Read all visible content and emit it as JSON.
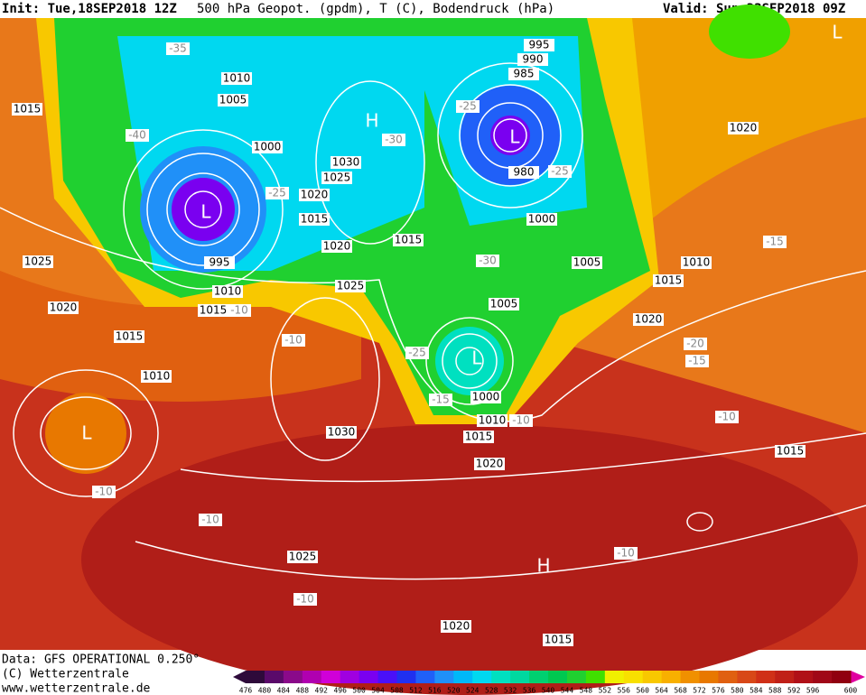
{
  "header": {
    "init": "Init: Tue,18SEP2018 12Z",
    "title": "500 hPa Geopot. (gpdm), T (C), Bodendruck (hPa)",
    "valid": "Valid: Sun,23SEP2018 09Z"
  },
  "map": {
    "pressure_centers": [
      "L",
      "H",
      "L",
      "L",
      "L",
      "H",
      "L"
    ],
    "isobar_labels": [
      "1015",
      "1025",
      "1020",
      "1015",
      "1010",
      "1010",
      "1005",
      "1000",
      "995",
      "1030",
      "1025",
      "1020",
      "1015",
      "1020",
      "1015",
      "1025",
      "995",
      "990",
      "985",
      "980",
      "1000",
      "1005",
      "1005",
      "1000",
      "1010",
      "1015",
      "1020",
      "1030",
      "1025",
      "1020",
      "1015",
      "1020",
      "1010",
      "1015",
      "1020",
      "1010",
      "1015",
      "1015"
    ],
    "temperature_labels": [
      "-35",
      "-40",
      "-25",
      "-30",
      "-25",
      "-25",
      "-30",
      "-25",
      "-15",
      "-10",
      "-10",
      "-10",
      "-10",
      "-10",
      "-15",
      "-20",
      "-15",
      "-10",
      "-10",
      "-10"
    ]
  },
  "footer": {
    "data": "Data: GFS OPERATIONAL 0.250°",
    "copyright": "(C) Wetterzentrale",
    "url": "www.wetterzentrale.de"
  },
  "colorbar": {
    "values": [
      476,
      480,
      484,
      488,
      492,
      496,
      500,
      504,
      508,
      512,
      516,
      520,
      524,
      528,
      532,
      536,
      540,
      544,
      548,
      552,
      556,
      560,
      564,
      568,
      572,
      576,
      580,
      584,
      588,
      592,
      596,
      600
    ],
    "colors": [
      "#2e0a3a",
      "#5a0a6a",
      "#8a0a8a",
      "#b000b0",
      "#d000d8",
      "#a000e0",
      "#7a00f0",
      "#4a10f8",
      "#2030f0",
      "#2060f8",
      "#2090f8",
      "#00b8f8",
      "#00d8f0",
      "#00e0c0",
      "#00d8a0",
      "#00d070",
      "#00c850",
      "#20d030",
      "#40e000",
      "#f0f000",
      "#f8e000",
      "#f8c800",
      "#f8b000",
      "#f09000",
      "#e87800",
      "#e06010",
      "#d84818",
      "#d03018",
      "#c02018",
      "#b01018",
      "#a00818",
      "#900010"
    ]
  }
}
